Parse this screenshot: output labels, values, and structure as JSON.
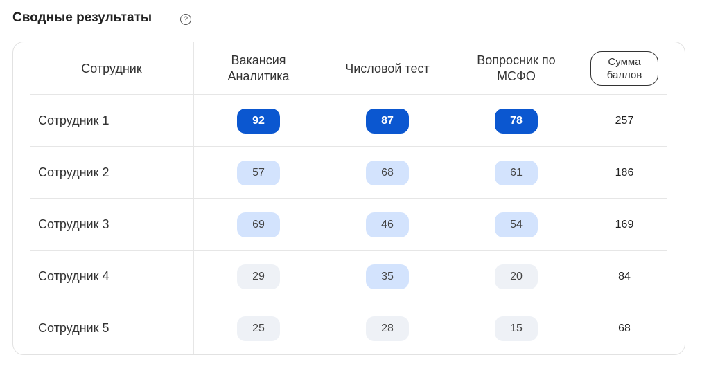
{
  "header": {
    "title": "Сводные результаты"
  },
  "table": {
    "columns": [
      "Сотрудник",
      "Вакансия Аналитика",
      "Числовой тест",
      "Вопросник по МСФО",
      "Сумма баллов"
    ],
    "rows": [
      [
        "Сотрудник 1",
        92,
        87,
        78,
        257
      ],
      [
        "Сотрудник 2",
        57,
        68,
        61,
        186
      ],
      [
        "Сотрудник 3",
        69,
        46,
        54,
        169
      ],
      [
        "Сотрудник 4",
        29,
        35,
        20,
        84
      ],
      [
        "Сотрудник 5",
        25,
        28,
        15,
        68
      ]
    ]
  }
}
